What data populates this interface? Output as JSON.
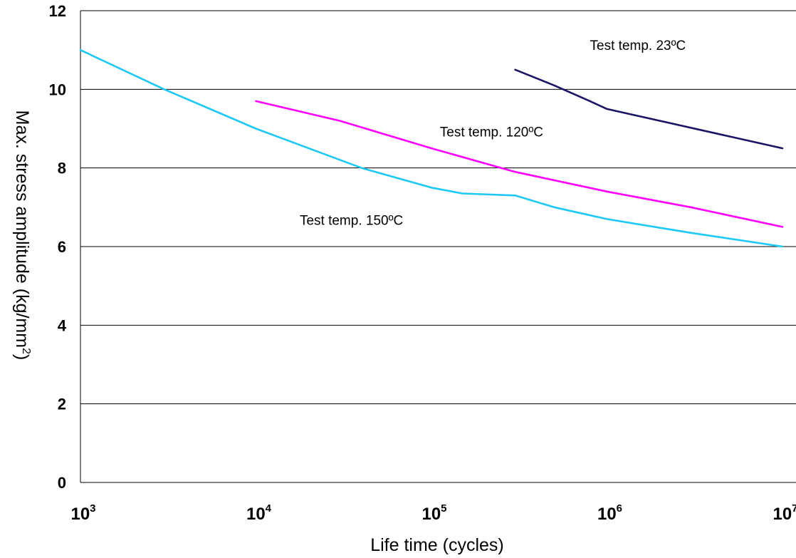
{
  "chart_data": {
    "type": "line",
    "xlabel": "Life time (cycles)",
    "ylabel": "Max. stress amplitude (kg/mm",
    "ylabel_sup": "2",
    "ylabel_tail": ")",
    "x_scale": "log",
    "xlim": [
      1000,
      10000000
    ],
    "ylim": [
      0,
      12
    ],
    "x_ticks": [
      {
        "base": "10",
        "exp": "3",
        "value": 1000
      },
      {
        "base": "10",
        "exp": "4",
        "value": 10000
      },
      {
        "base": "10",
        "exp": "5",
        "value": 100000
      },
      {
        "base": "10",
        "exp": "6",
        "value": 1000000
      },
      {
        "base": "10",
        "exp": "7",
        "value": 10000000
      }
    ],
    "y_ticks": [
      "0",
      "2",
      "4",
      "6",
      "8",
      "10",
      "12"
    ],
    "grid": "horizontal",
    "annotations": [
      {
        "text": "Test temp. 23ºC",
        "x": 1500000,
        "y": 11.0
      },
      {
        "text": "Test temp. 120ºC",
        "x": 220000,
        "y": 8.8
      },
      {
        "text": "Test temp. 150ºC",
        "x": 35000,
        "y": 6.55
      }
    ],
    "series": [
      {
        "color": "#1b1464",
        "points": [
          [
            300000,
            10.5
          ],
          [
            500000,
            10.1
          ],
          [
            800000,
            9.7
          ],
          [
            1000000,
            9.5
          ],
          [
            2000000,
            9.2
          ],
          [
            5000000,
            8.8
          ],
          [
            10000000,
            8.5
          ]
        ]
      },
      {
        "color": "#ff00ff",
        "points": [
          [
            10000,
            9.7
          ],
          [
            30000,
            9.2
          ],
          [
            100000,
            8.5
          ],
          [
            300000,
            7.9
          ],
          [
            1000000,
            7.4
          ],
          [
            3000000,
            7.0
          ],
          [
            10000000,
            6.5
          ]
        ]
      },
      {
        "color": "#1ec8f5",
        "points": [
          [
            1000,
            11.0
          ],
          [
            3000,
            10.0
          ],
          [
            10000,
            9.0
          ],
          [
            40000,
            8.0
          ],
          [
            100000,
            7.5
          ],
          [
            150000,
            7.35
          ],
          [
            300000,
            7.3
          ],
          [
            500000,
            7.0
          ],
          [
            1000000,
            6.7
          ],
          [
            3000000,
            6.35
          ],
          [
            10000000,
            6.0
          ]
        ]
      }
    ]
  }
}
